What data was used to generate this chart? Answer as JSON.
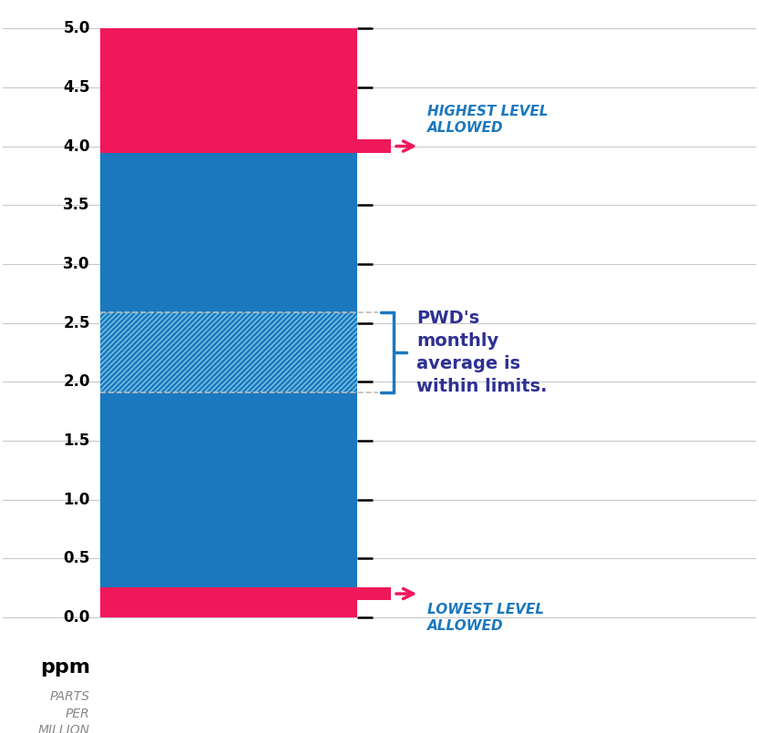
{
  "ymin": 0.0,
  "ymax": 5.0,
  "lowest_allowed": 0.2,
  "highest_allowed": 4.0,
  "pwd_low": 1.91,
  "pwd_high": 2.59,
  "pink_color": "#F0185A",
  "blue_color": "#1B78BF",
  "hatch_line_color": "#7EC8E3",
  "dark_navy": "#2E3192",
  "tick_values": [
    0.0,
    0.5,
    1.0,
    1.5,
    2.0,
    2.5,
    3.0,
    3.5,
    4.0,
    4.5,
    5.0
  ],
  "grid_color": "#BBBBBB",
  "dashed_color": "#BBBBBB",
  "annotation_arrow_color": "#F0185A",
  "annotation_text_color": "#1B78BF",
  "pwd_text_color": "#2E3192",
  "brace_color": "#1B78BF",
  "xlabel_ppm": "ppm",
  "xlabel_sub": "PARTS\nPER\nMILLION",
  "highest_label": "HIGHEST LEVEL\nALLOWED",
  "lowest_label": "LOWEST LEVEL\nALLOWED",
  "pwd_label": "PWD's\nmonthly\naverage is\nwithin limits."
}
